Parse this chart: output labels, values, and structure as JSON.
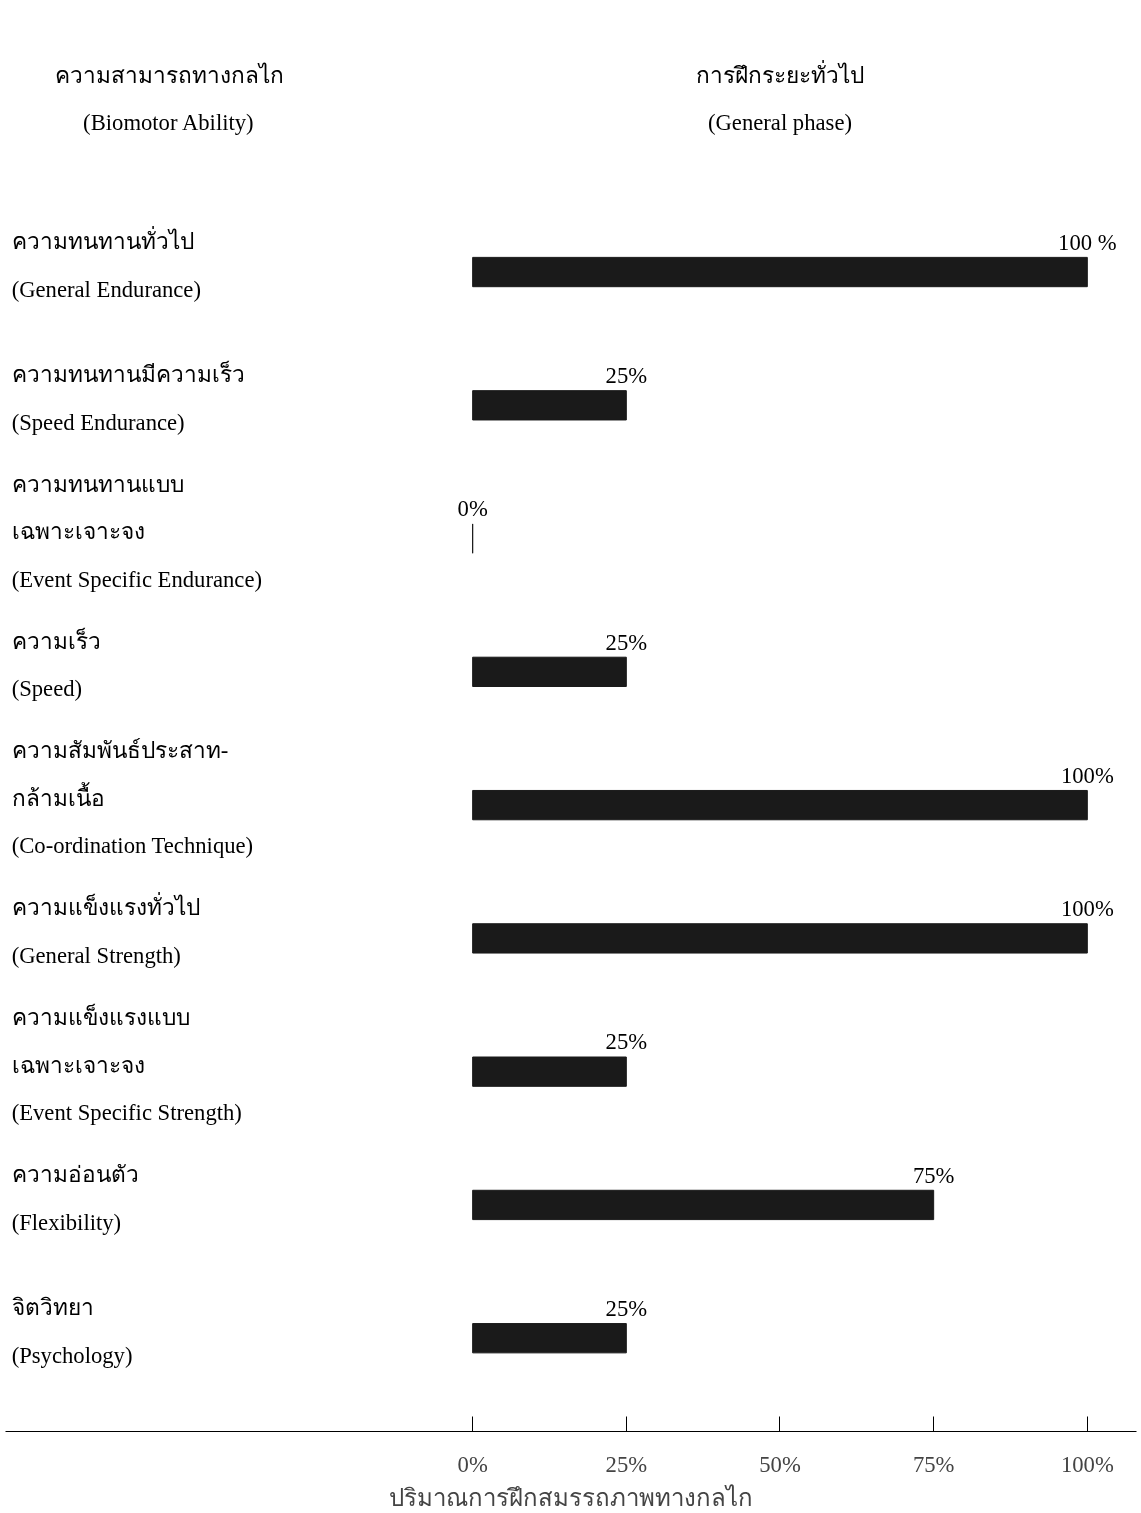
{
  "chart_data": {
    "type": "bar",
    "orientation": "horizontal",
    "title": "การฝึกระยะทั่วไป\n(General phase)",
    "ylabel": "ความสามารถทางกลไก\n(Biomotor Ability)",
    "xlabel": "ปริมาณการฝึกสมรรถภาพทางกลไก",
    "categories": [
      "ความทนทานทั่วไป\n(General Endurance)",
      "ความทนทานมีความเร็ว\n(Speed Endurance)",
      "ความทนทานแบบ\nเฉพาะเจาะจง\n(Event Specific Endurance)",
      "ความเร็ว\n(Speed)",
      "ความสัมพันธ์ประสาท-\nกล้ามเนื้อ\n(Co-ordination Technique)",
      "ความแข็งแรงทั่วไป\n(General Strength)",
      "ความแข็งแรงแบบ\nเฉพาะเจาะจง\n(Event Specific Strength)",
      "ความอ่อนตัว\n(Flexibility)",
      "จิตวิทยา\n(Psychology)"
    ],
    "values": [
      100,
      25,
      0,
      25,
      100,
      100,
      25,
      75,
      25
    ],
    "value_labels": [
      "100 %",
      "25%",
      "0%",
      "25%",
      "100%",
      "100%",
      "25%",
      "75%",
      "25%"
    ],
    "color": "#1a1a1a",
    "xlim": [
      -76,
      108
    ],
    "xticks": [
      {
        "value": 0,
        "label": "0%"
      },
      {
        "value": 25,
        "label": "25%"
      },
      {
        "value": 50,
        "label": "50%"
      },
      {
        "value": 75,
        "label": "75%"
      },
      {
        "value": 100,
        "label": "100%"
      }
    ],
    "grid": false
  }
}
